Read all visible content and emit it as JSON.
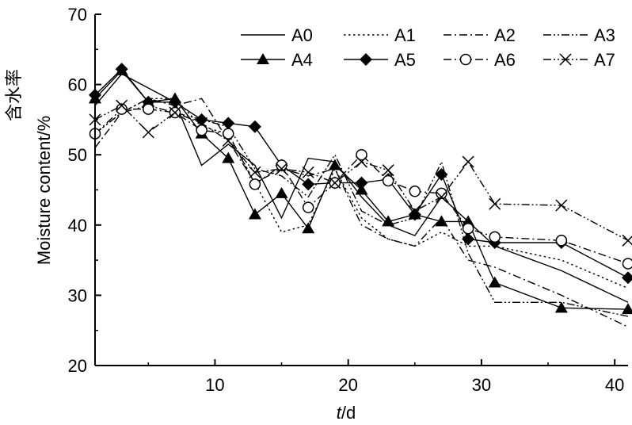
{
  "chart_data": {
    "type": "line",
    "xlabel_var": "t",
    "xlabel_unit": "/d",
    "ylabel": "含水率 Moisture content/%",
    "ylabel_cn": "含水率",
    "ylabel_en": "Moisture content/%",
    "xlim": [
      1,
      41
    ],
    "ylim": [
      20,
      70
    ],
    "xticks": [
      10,
      20,
      30,
      40
    ],
    "yticks": [
      20,
      30,
      40,
      50,
      60,
      70
    ],
    "legend_position": "top-right",
    "grid": false,
    "series": [
      {
        "name": "A0",
        "line": "solid",
        "marker": "none",
        "x": [
          1,
          3,
          5,
          7,
          9,
          11,
          13,
          15,
          17,
          19,
          21,
          23,
          25,
          27,
          29,
          31,
          36,
          41
        ],
        "y": [
          57,
          61.5,
          59.5,
          57.5,
          48.5,
          51.5,
          48.5,
          41,
          49.5,
          49,
          44,
          40,
          38.5,
          44,
          40.5,
          37,
          33.5,
          29
        ]
      },
      {
        "name": "A1",
        "line": "dotted",
        "marker": "none",
        "x": [
          1,
          3,
          5,
          7,
          9,
          11,
          13,
          15,
          17,
          19,
          21,
          23,
          25,
          27,
          29,
          31,
          36,
          41
        ],
        "y": [
          53,
          56,
          58,
          58,
          54,
          53,
          46,
          39,
          40,
          48,
          41,
          38,
          37,
          39,
          37,
          37,
          35,
          31
        ]
      },
      {
        "name": "A2",
        "line": "dashdot",
        "marker": "none",
        "x": [
          1,
          3,
          5,
          7,
          9,
          11,
          13,
          15,
          17,
          19,
          21,
          23,
          25,
          27,
          29,
          31,
          36,
          41
        ],
        "y": [
          51,
          56,
          58,
          57,
          58,
          52,
          46,
          48,
          47,
          48,
          40,
          38,
          37,
          41,
          35,
          34,
          30,
          25.5
        ]
      },
      {
        "name": "A3",
        "line": "dashdotdot",
        "marker": "none",
        "x": [
          1,
          3,
          5,
          7,
          9,
          11,
          13,
          15,
          17,
          19,
          21,
          23,
          25,
          27,
          29,
          31,
          36,
          41
        ],
        "y": [
          53,
          56,
          57,
          56,
          55,
          54,
          48,
          47,
          44,
          50,
          42,
          40,
          41,
          49,
          36,
          29,
          29,
          27
        ]
      },
      {
        "name": "A4",
        "line": "solid",
        "marker": "triangle",
        "x": [
          1,
          3,
          5,
          7,
          9,
          11,
          13,
          15,
          17,
          19,
          21,
          23,
          25,
          27,
          29,
          31,
          36,
          41
        ],
        "y": [
          58,
          62,
          57.5,
          58,
          53,
          49.5,
          41.5,
          44.5,
          39.5,
          48.5,
          45,
          40.5,
          41.5,
          40.5,
          40.5,
          31.8,
          28.2,
          28
        ]
      },
      {
        "name": "A5",
        "line": "solid",
        "marker": "diamond",
        "x": [
          1,
          3,
          5,
          7,
          9,
          11,
          13,
          15,
          17,
          19,
          21,
          23,
          25,
          27,
          29,
          31,
          36,
          41
        ],
        "y": [
          58.5,
          62.2,
          57.5,
          57.5,
          55,
          54.5,
          54,
          48.5,
          45.8,
          46,
          46,
          46.5,
          41.5,
          47.2,
          38,
          37.5,
          37.5,
          32.5
        ]
      },
      {
        "name": "A6",
        "line": "dashdot",
        "marker": "circle",
        "x": [
          1,
          3,
          5,
          7,
          9,
          11,
          13,
          15,
          17,
          19,
          21,
          23,
          25,
          27,
          29,
          31,
          36,
          41
        ],
        "y": [
          53,
          56.5,
          56.5,
          56,
          53.5,
          53,
          45.8,
          48.5,
          42.5,
          46,
          50,
          46.3,
          44.8,
          44.5,
          39.5,
          38.3,
          37.8,
          34.5
        ]
      },
      {
        "name": "A7",
        "line": "dashdotdot",
        "marker": "x",
        "x": [
          1,
          3,
          5,
          7,
          9,
          11,
          13,
          15,
          17,
          19,
          21,
          23,
          25,
          27,
          29,
          31,
          36,
          41
        ],
        "y": [
          55,
          57,
          53.2,
          56,
          54.5,
          52,
          47.5,
          48,
          47.5,
          46,
          49,
          47.8,
          42,
          44,
          49,
          43,
          42.8,
          37.8
        ]
      }
    ]
  }
}
